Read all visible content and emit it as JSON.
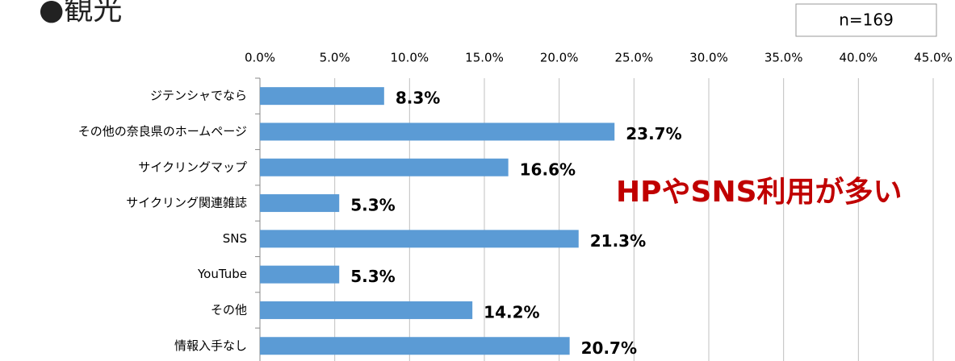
{
  "chart_data": {
    "type": "bar",
    "orientation": "horizontal",
    "title": "●観光",
    "note": "n=169",
    "annotation": "HPやSNS利用が多い",
    "categories": [
      "ジテンシャでなら",
      "その他の奈良県のホームページ",
      "サイクリングマップ",
      "サイクリング関連雑誌",
      "SNS",
      "YouTube",
      "その他",
      "情報入手なし"
    ],
    "values": [
      8.3,
      23.7,
      16.6,
      5.3,
      21.3,
      5.3,
      14.2,
      20.7
    ],
    "value_labels": [
      "8.3%",
      "23.7%",
      "16.6%",
      "5.3%",
      "21.3%",
      "5.3%",
      "14.2%",
      "20.7%"
    ],
    "color": "#5b9bd5",
    "xlim": [
      0,
      45
    ],
    "xticks": [
      {
        "value": 0,
        "label": "0.0%"
      },
      {
        "value": 5,
        "label": "5.0%"
      },
      {
        "value": 10,
        "label": "10.0%"
      },
      {
        "value": 15,
        "label": "15.0%"
      },
      {
        "value": 20,
        "label": "20.0%"
      },
      {
        "value": 25,
        "label": "25.0%"
      },
      {
        "value": 30,
        "label": "30.0%"
      },
      {
        "value": 35,
        "label": "35.0%"
      },
      {
        "value": 40,
        "label": "40.0%"
      },
      {
        "value": 45,
        "label": "45.0%"
      }
    ],
    "grid": true
  }
}
